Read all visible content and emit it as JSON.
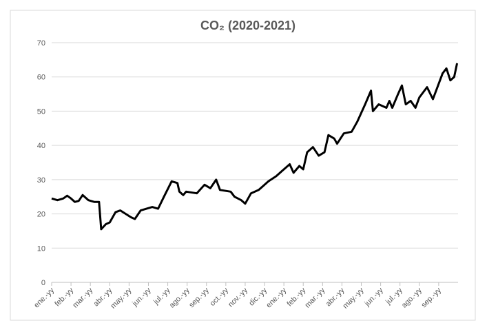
{
  "chart_data": {
    "type": "line",
    "title": "CO₂ (2020-2021)",
    "color": "#000000",
    "x": [
      0,
      0.3,
      0.6,
      0.8,
      1.0,
      1.2,
      1.4,
      1.6,
      1.9,
      2.2,
      2.45,
      2.56,
      2.8,
      3.0,
      3.3,
      3.55,
      4.1,
      4.3,
      4.6,
      5.2,
      5.5,
      5.8,
      6.2,
      6.5,
      6.6,
      6.8,
      6.95,
      7.5,
      7.9,
      8.2,
      8.5,
      8.7,
      9.25,
      9.45,
      9.8,
      10.0,
      10.3,
      10.7,
      11.2,
      11.6,
      11.9,
      12.3,
      12.5,
      12.8,
      13.0,
      13.2,
      13.5,
      13.8,
      14.1,
      14.3,
      14.6,
      14.75,
      15.1,
      15.5,
      15.8,
      16.2,
      16.5,
      16.6,
      16.9,
      17.3,
      17.45,
      17.6,
      17.9,
      18.1,
      18.3,
      18.55,
      18.8,
      19.0,
      19.4,
      19.7,
      20.0,
      20.2,
      20.4,
      20.6,
      20.8,
      20.95
    ],
    "values": [
      24.5,
      24,
      24.5,
      25.3,
      24.5,
      23.5,
      23.8,
      25.5,
      24,
      23.5,
      23.5,
      15.5,
      17,
      17.5,
      20.5,
      21,
      19,
      18.5,
      21,
      22,
      21.5,
      25,
      29.5,
      29,
      26.5,
      25.5,
      26.5,
      26,
      28.5,
      27.5,
      30,
      27,
      26.5,
      25,
      24,
      23,
      26,
      27,
      29.5,
      31,
      32.5,
      34.5,
      32,
      34,
      33,
      38,
      39.5,
      37,
      38,
      43,
      42,
      40.5,
      43.5,
      44,
      47,
      52,
      56,
      50,
      52,
      51,
      53,
      51,
      55,
      57.5,
      52,
      53,
      51,
      54,
      57,
      53.5,
      58,
      61,
      62.5,
      59,
      60,
      64
    ],
    "xlim": [
      0,
      21
    ],
    "xticks": [
      {
        "value": 0,
        "label": "ene.-yy"
      },
      {
        "value": 1,
        "label": "feb.-yy"
      },
      {
        "value": 2,
        "label": "mar.-yy"
      },
      {
        "value": 3,
        "label": "abr.-yy"
      },
      {
        "value": 4,
        "label": "may.-yy"
      },
      {
        "value": 5,
        "label": "jun.-yy"
      },
      {
        "value": 6,
        "label": "jul.-yy"
      },
      {
        "value": 7,
        "label": "ago.-yy"
      },
      {
        "value": 8,
        "label": "sep.-yy"
      },
      {
        "value": 9,
        "label": "oct.-yy"
      },
      {
        "value": 10,
        "label": "nov.-yy"
      },
      {
        "value": 11,
        "label": "dic.-yy"
      },
      {
        "value": 12,
        "label": "ene.-yy"
      },
      {
        "value": 13,
        "label": "feb.-yy"
      },
      {
        "value": 14,
        "label": "mar.-yy"
      },
      {
        "value": 15,
        "label": "abr.-yy"
      },
      {
        "value": 16,
        "label": "may.-yy"
      },
      {
        "value": 17,
        "label": "jun.-yy"
      },
      {
        "value": 18,
        "label": "jul.-yy"
      },
      {
        "value": 19,
        "label": "ago.-yy"
      },
      {
        "value": 20,
        "label": "sep.-yy"
      }
    ],
    "ylim": [
      0,
      70
    ],
    "yticks": [
      0,
      10,
      20,
      30,
      40,
      50,
      60,
      70
    ],
    "grid": true
  }
}
